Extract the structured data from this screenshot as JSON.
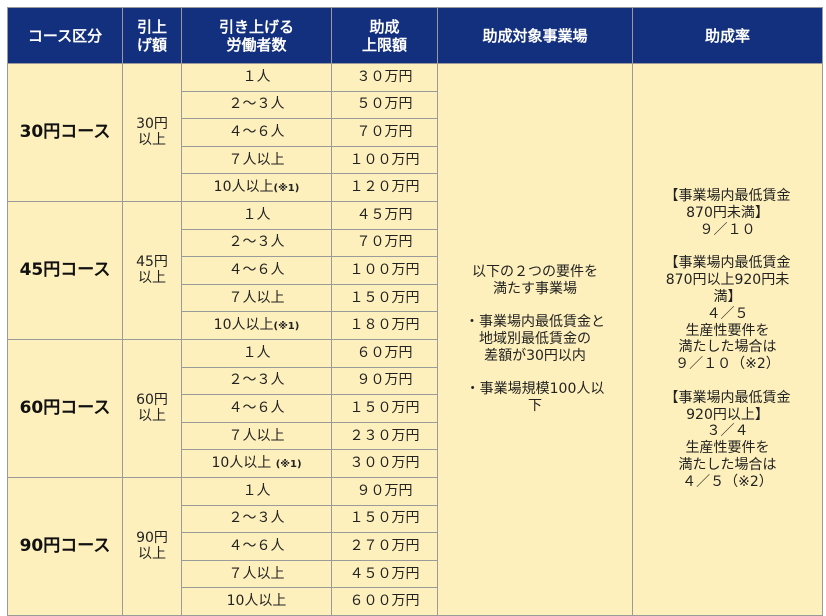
{
  "headers": [
    "コース区分",
    "引上\nげ額",
    "引き上げる\n労働者数",
    "助成\n上限額",
    "助成対象事業場",
    "助成率"
  ],
  "courses": [
    {
      "name": "30円コース",
      "raise": "30円\n以上",
      "rows": [
        {
          "workers": "１人",
          "note": "",
          "limit": "３０万円"
        },
        {
          "workers": "２～３人",
          "note": "",
          "limit": "５０万円"
        },
        {
          "workers": "４～６人",
          "note": "",
          "limit": "７０万円"
        },
        {
          "workers": "７人以上",
          "note": "",
          "limit": "１００万円"
        },
        {
          "workers": "10人以上",
          "note": "(※1)",
          "limit": "１２０万円"
        }
      ]
    },
    {
      "name": "45円コース",
      "raise": "45円\n以上",
      "rows": [
        {
          "workers": "１人",
          "note": "",
          "limit": "４５万円"
        },
        {
          "workers": "２～３人",
          "note": "",
          "limit": "７０万円"
        },
        {
          "workers": "４～６人",
          "note": "",
          "limit": "１００万円"
        },
        {
          "workers": "７人以上",
          "note": "",
          "limit": "１５０万円"
        },
        {
          "workers": "10人以上",
          "note": "(※1)",
          "limit": "１８０万円"
        }
      ]
    },
    {
      "name": "60円コース",
      "raise": "60円\n以上",
      "rows": [
        {
          "workers": "１人",
          "note": "",
          "limit": "６０万円"
        },
        {
          "workers": "２～３人",
          "note": "",
          "limit": "９０万円"
        },
        {
          "workers": "４～６人",
          "note": "",
          "limit": "１５０万円"
        },
        {
          "workers": "７人以上",
          "note": "",
          "limit": "２３０万円"
        },
        {
          "workers": "10人以上 ",
          "note": "(※1)",
          "limit": "３００万円"
        }
      ]
    },
    {
      "name": "90円コース",
      "raise": "90円\n以上",
      "rows": [
        {
          "workers": "１人",
          "note": "",
          "limit": "９０万円"
        },
        {
          "workers": "２～３人",
          "note": "",
          "limit": "１５０万円"
        },
        {
          "workers": "４～６人",
          "note": "",
          "limit": "２７０万円"
        },
        {
          "workers": "７人以上",
          "note": "",
          "limit": "４５０万円"
        },
        {
          "workers": "10人以上",
          "note": "",
          "limit": "６００万円"
        }
      ]
    }
  ],
  "eligible": "以下の２つの要件を\n満たす事業場\n\n・事業場内最低賃金と\n地域別最低賃金の\n差額が30円以内\n\n・事業場規模100人以\n下",
  "rate": "【事業場内最低賃金\n870円未満】\n９／１０\n\n【事業場内最低賃金\n870円以上920円未\n満】\n４／５\n生産性要件を\n満たした場合は\n９／１０（※2）\n\n【事業場内最低賃金\n920円以上】\n３／４\n生産性要件を\n満たした場合は\n４／５（※2）",
  "colors": {
    "header_bg": "#13307f",
    "body_bg": "#fdf0bc",
    "border": "#9a9a9a"
  }
}
